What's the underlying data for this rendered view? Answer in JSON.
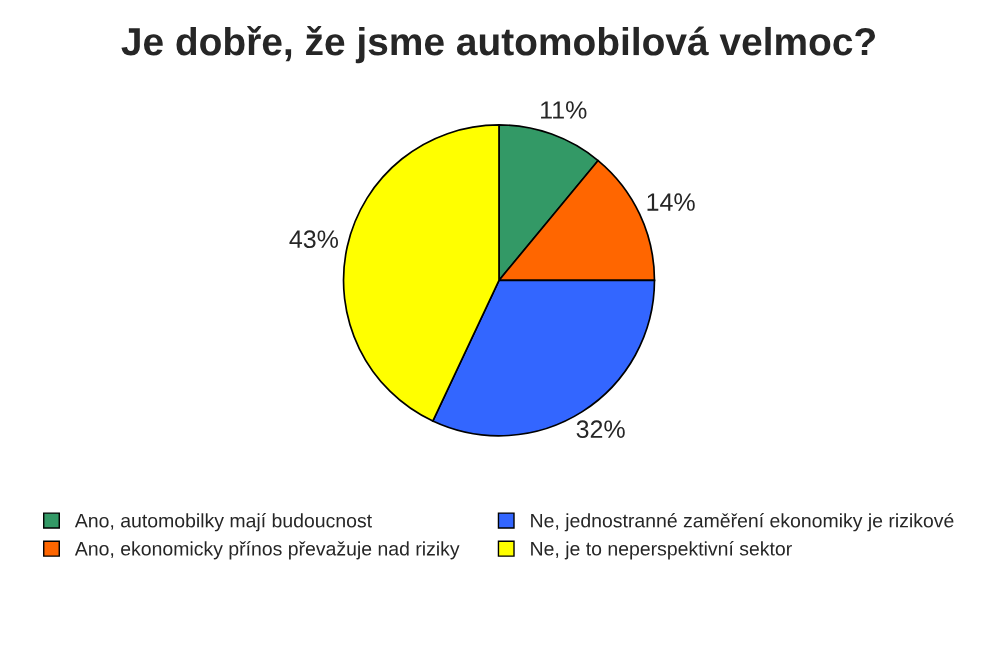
{
  "chart_data": {
    "type": "pie",
    "title": "Je dobře, že jsme automobilová velmoc?",
    "categories": [
      "Ano, automobilky mají budoucnost",
      "Ano, ekonomicky přínos převažuje nad riziky",
      "Ne, jednostranné zaměření ekonomiky je rizikové",
      "Ne, je to neperspektivní sektor"
    ],
    "values": [
      11,
      14,
      32,
      43
    ],
    "value_labels": [
      "11%",
      "14%",
      "32%",
      "43%"
    ],
    "colors": [
      "#339966",
      "#ff6600",
      "#3366ff",
      "#ffff00"
    ],
    "legend": "bottom"
  }
}
